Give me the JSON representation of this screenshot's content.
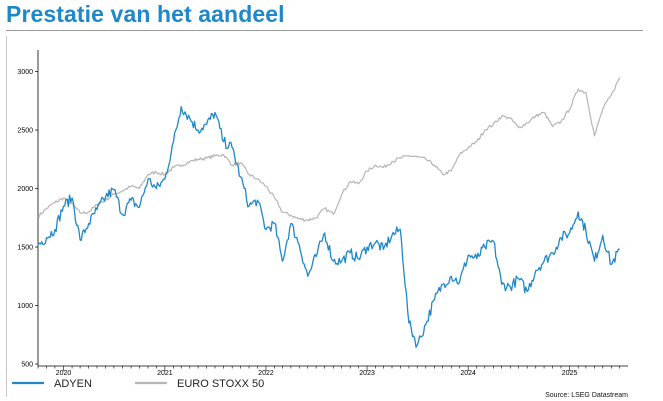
{
  "header": {
    "title": "Prestatie van het aandeel"
  },
  "chart_data": {
    "type": "line",
    "title": "Prestatie van het aandeel",
    "xlabel": "",
    "ylabel": "",
    "x_ticks": [
      "2020",
      "2021",
      "2022",
      "2023",
      "2024",
      "2025"
    ],
    "y_ticks": [
      500,
      1000,
      1500,
      2000,
      2500,
      3000
    ],
    "ylim": [
      500,
      3150
    ],
    "xlim": [
      "2019-10-01",
      "2025-07-31"
    ],
    "grid": false,
    "legend": {
      "position": "bottom-left"
    },
    "source": "Source: LSEG Datastream",
    "series": [
      {
        "name": "ADYEN",
        "color": "#1e88c8",
        "x": [
          "2019-10-01",
          "2019-11-01",
          "2019-12-01",
          "2020-01-01",
          "2020-02-01",
          "2020-03-01",
          "2020-04-01",
          "2020-05-01",
          "2020-06-01",
          "2020-07-01",
          "2020-08-01",
          "2020-09-01",
          "2020-10-01",
          "2020-11-01",
          "2020-12-01",
          "2021-01-01",
          "2021-02-01",
          "2021-03-01",
          "2021-04-01",
          "2021-05-01",
          "2021-06-01",
          "2021-07-01",
          "2021-08-01",
          "2021-09-01",
          "2021-10-01",
          "2021-11-01",
          "2021-12-01",
          "2022-01-01",
          "2022-02-01",
          "2022-03-01",
          "2022-04-01",
          "2022-05-01",
          "2022-06-01",
          "2022-07-01",
          "2022-08-01",
          "2022-09-01",
          "2022-10-01",
          "2022-11-01",
          "2022-12-01",
          "2023-01-01",
          "2023-02-01",
          "2023-03-01",
          "2023-04-01",
          "2023-05-01",
          "2023-06-01",
          "2023-07-01",
          "2023-08-01",
          "2023-09-01",
          "2023-10-01",
          "2023-11-01",
          "2023-12-01",
          "2024-01-01",
          "2024-02-01",
          "2024-03-01",
          "2024-04-01",
          "2024-05-01",
          "2024-06-01",
          "2024-07-01",
          "2024-08-01",
          "2024-09-01",
          "2024-10-01",
          "2024-11-01",
          "2024-12-01",
          "2025-01-01",
          "2025-02-01",
          "2025-03-01",
          "2025-04-01",
          "2025-05-01",
          "2025-06-01",
          "2025-07-01"
        ],
        "values": [
          1520,
          1580,
          1650,
          1850,
          1920,
          1560,
          1700,
          1820,
          1930,
          1990,
          1780,
          1900,
          1840,
          2080,
          2000,
          2080,
          2400,
          2700,
          2600,
          2500,
          2550,
          2650,
          2400,
          2350,
          2100,
          1850,
          1900,
          1650,
          1700,
          1380,
          1700,
          1520,
          1250,
          1420,
          1620,
          1380,
          1380,
          1450,
          1400,
          1500,
          1540,
          1480,
          1600,
          1650,
          850,
          660,
          840,
          1050,
          1180,
          1250,
          1200,
          1430,
          1400,
          1500,
          1550,
          1180,
          1160,
          1230,
          1120,
          1300,
          1380,
          1450,
          1580,
          1620,
          1800,
          1640,
          1380,
          1600,
          1350,
          1480
        ]
      },
      {
        "name": "EURO STOXX 50",
        "color": "#b5b5b5",
        "x": [
          "2019-10-01",
          "2019-11-01",
          "2019-12-01",
          "2020-01-01",
          "2020-02-01",
          "2020-03-01",
          "2020-04-01",
          "2020-05-01",
          "2020-06-01",
          "2020-07-01",
          "2020-08-01",
          "2020-09-01",
          "2020-10-01",
          "2020-11-01",
          "2020-12-01",
          "2021-01-01",
          "2021-02-01",
          "2021-03-01",
          "2021-04-01",
          "2021-05-01",
          "2021-06-01",
          "2021-07-01",
          "2021-08-01",
          "2021-09-01",
          "2021-10-01",
          "2021-11-01",
          "2021-12-01",
          "2022-01-01",
          "2022-02-01",
          "2022-03-01",
          "2022-04-01",
          "2022-05-01",
          "2022-06-01",
          "2022-07-01",
          "2022-08-01",
          "2022-09-01",
          "2022-10-01",
          "2022-11-01",
          "2022-12-01",
          "2023-01-01",
          "2023-02-01",
          "2023-03-01",
          "2023-04-01",
          "2023-05-01",
          "2023-06-01",
          "2023-07-01",
          "2023-08-01",
          "2023-09-01",
          "2023-10-01",
          "2023-11-01",
          "2023-12-01",
          "2024-01-01",
          "2024-02-01",
          "2024-03-01",
          "2024-04-01",
          "2024-05-01",
          "2024-06-01",
          "2024-07-01",
          "2024-08-01",
          "2024-09-01",
          "2024-10-01",
          "2024-11-01",
          "2024-12-01",
          "2025-01-01",
          "2025-02-01",
          "2025-03-01",
          "2025-04-01",
          "2025-05-01",
          "2025-06-01",
          "2025-07-01"
        ],
        "values": [
          1760,
          1830,
          1880,
          1920,
          1870,
          1790,
          1800,
          1860,
          1900,
          1950,
          1980,
          2020,
          2000,
          2120,
          2140,
          2120,
          2180,
          2200,
          2230,
          2250,
          2260,
          2280,
          2290,
          2200,
          2220,
          2120,
          2080,
          2020,
          1920,
          1800,
          1770,
          1740,
          1730,
          1750,
          1830,
          1780,
          1950,
          2060,
          2040,
          2150,
          2200,
          2180,
          2230,
          2260,
          2280,
          2270,
          2250,
          2200,
          2120,
          2150,
          2290,
          2350,
          2400,
          2500,
          2550,
          2620,
          2600,
          2520,
          2560,
          2620,
          2650,
          2530,
          2570,
          2680,
          2850,
          2820,
          2450,
          2680,
          2800,
          2950
        ]
      }
    ]
  }
}
